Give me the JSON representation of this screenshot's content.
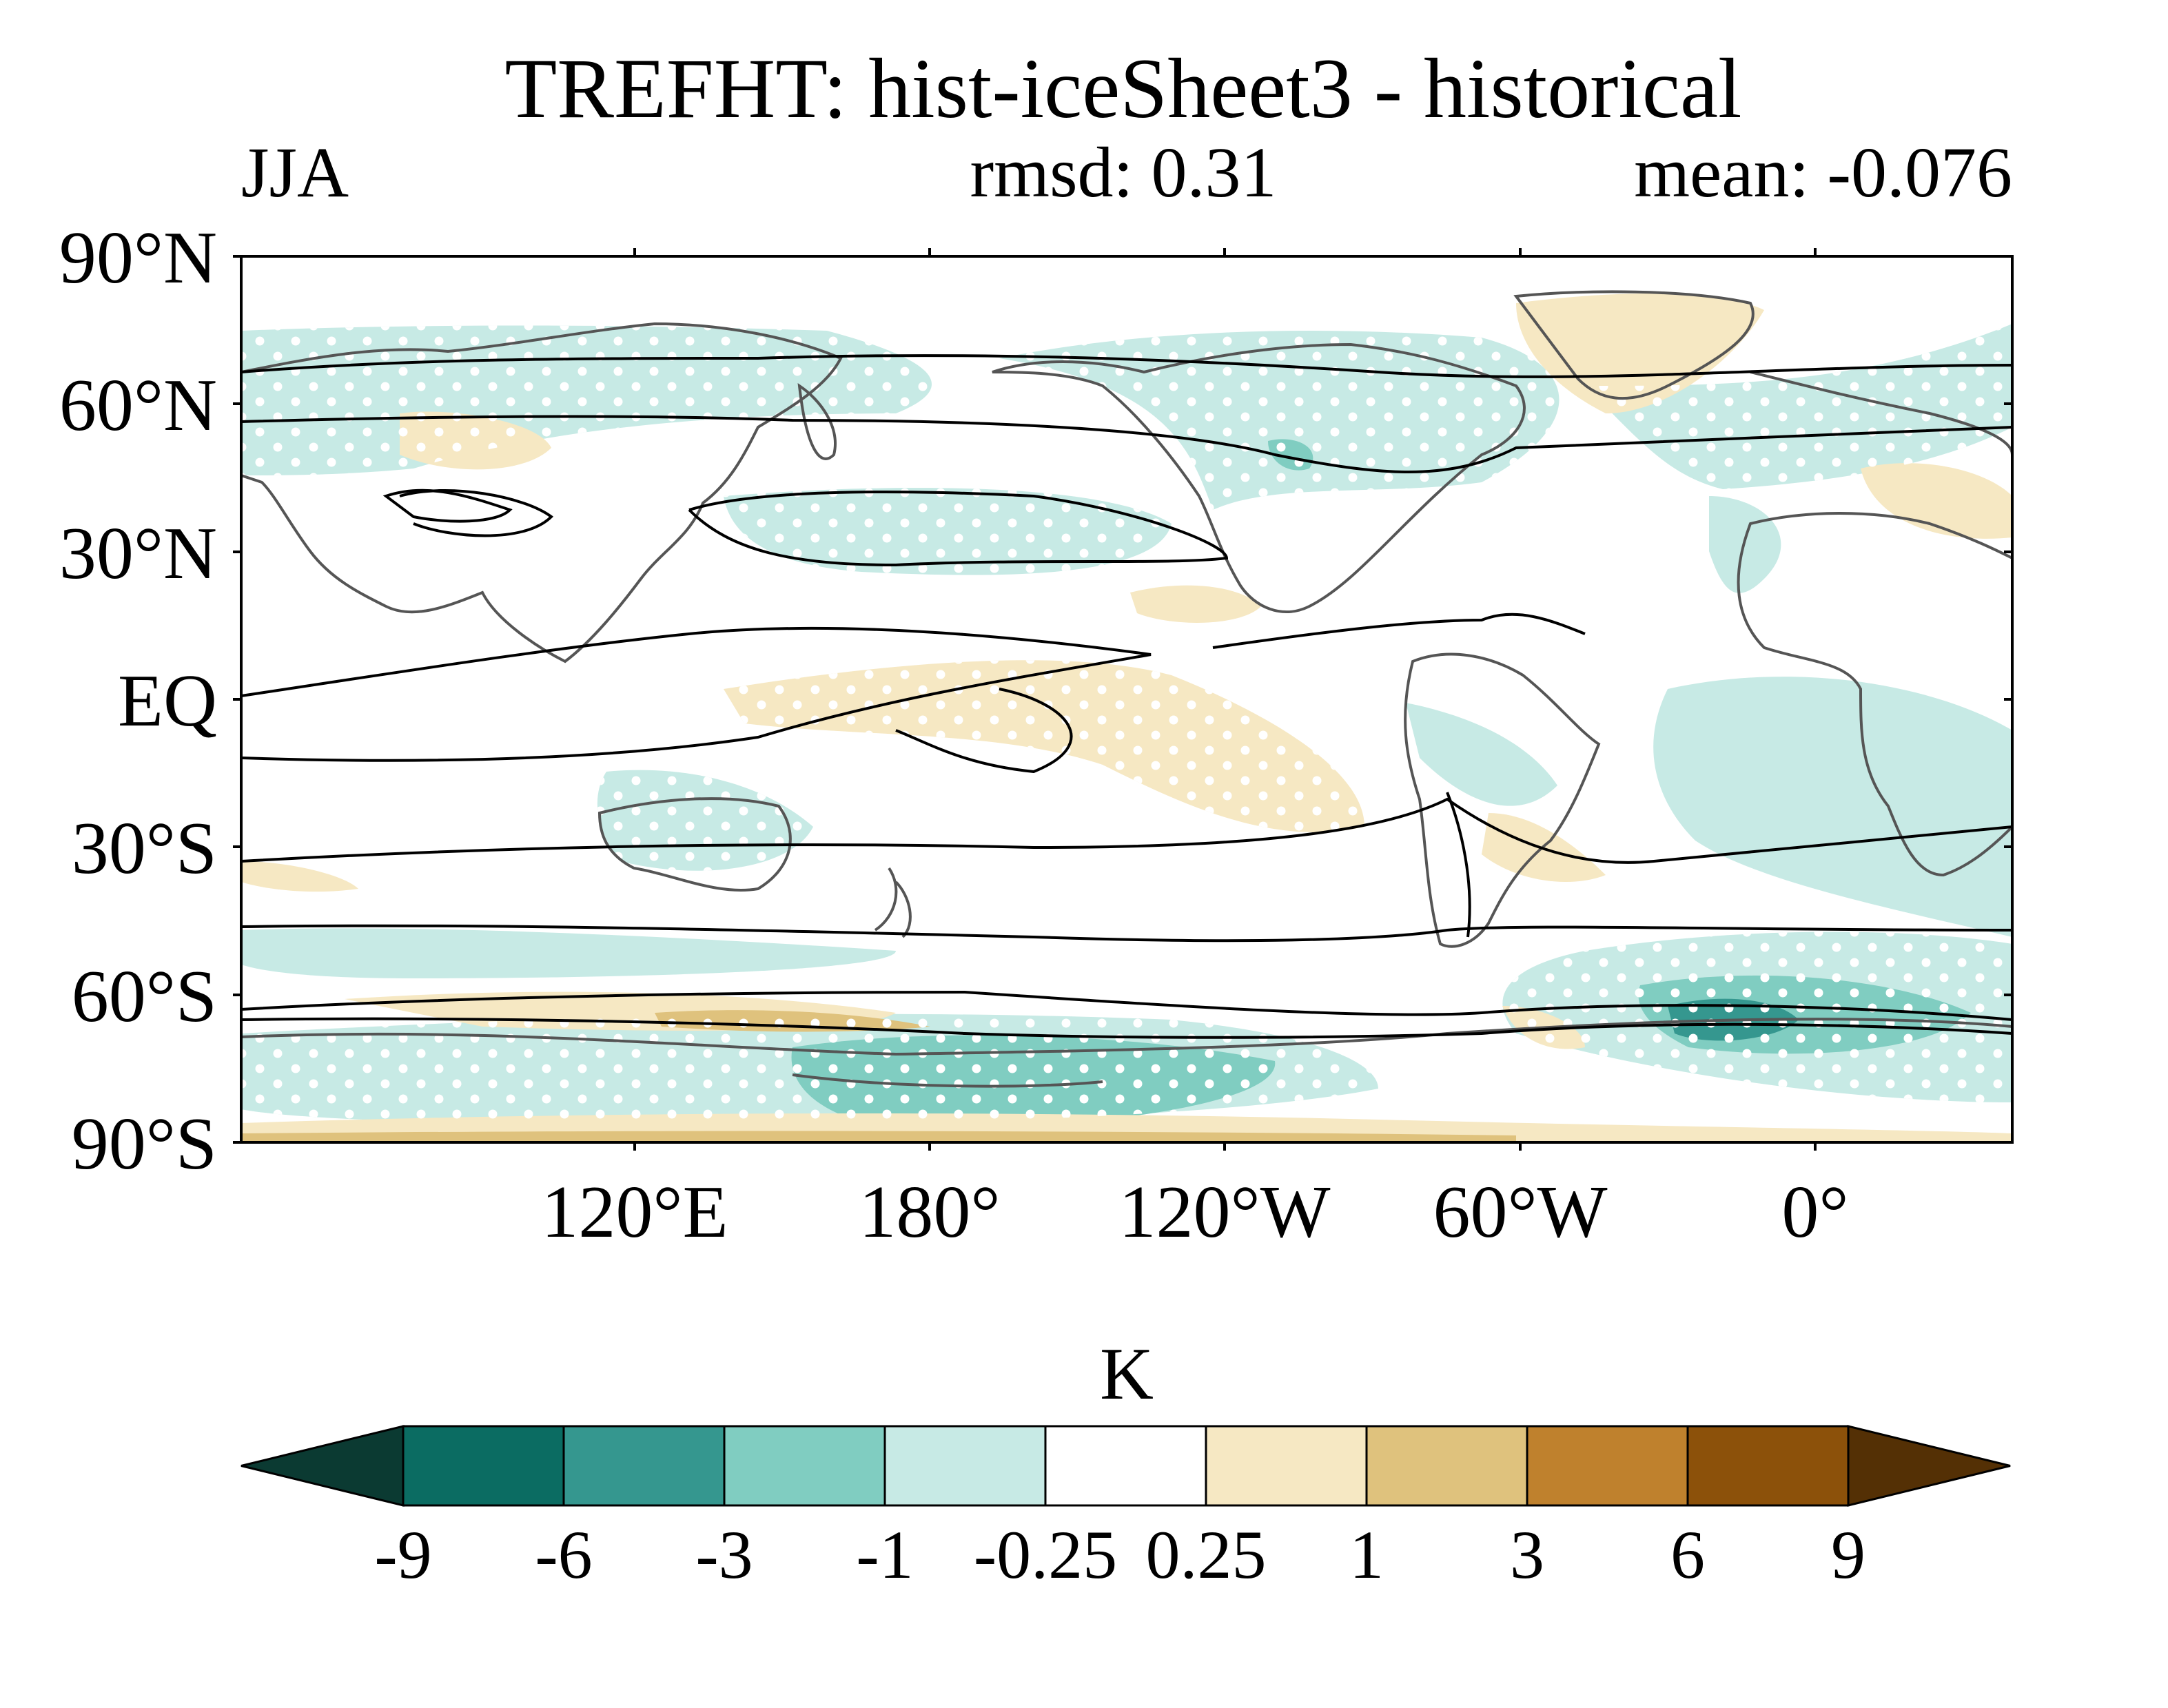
{
  "title": "TREFHT: hist-iceSheet3 - historical",
  "season": "JJA",
  "rmsd": "rmsd: 0.31",
  "mean": "mean: -0.076",
  "lat_labels": [
    "90°N",
    "60°N",
    "30°N",
    "EQ",
    "30°S",
    "60°S",
    "90°S"
  ],
  "lon_labels": [
    "120°E",
    "180°",
    "120°W",
    "60°W",
    "0°"
  ],
  "colorbar": {
    "unit": "K",
    "tick_labels": [
      "-9",
      "-6",
      "-3",
      "-1",
      "-0.25",
      "0.25",
      "1",
      "3",
      "6",
      "9"
    ],
    "colors": [
      "#0b3a32",
      "#0b6c62",
      "#35978f",
      "#80cdc1",
      "#c7eae5",
      "#ffffff",
      "#f6e8c3",
      "#dfc27d",
      "#bf812d",
      "#8c510a",
      "#543005"
    ]
  }
}
